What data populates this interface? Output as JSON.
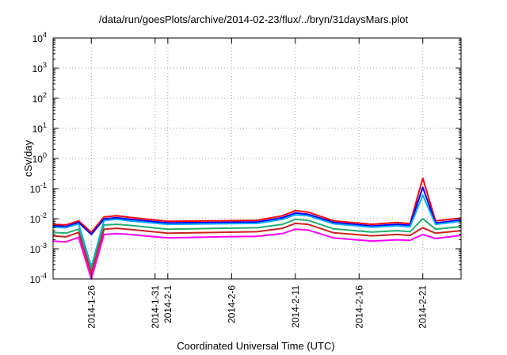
{
  "chart_data": {
    "type": "line",
    "title": "/data/run/goesPlots/archive/2014-02-23/flux/../bryn/31daysMars.plot",
    "xlabel": "Coordinated Universal Time (UTC)",
    "ylabel": "cSv/day",
    "y_scale": "log",
    "ylim": [
      0.0001,
      10000
    ],
    "xlim": [
      "2014-01-23",
      "2014-02-24"
    ],
    "grid": true,
    "y_ticks": [
      {
        "base": "10",
        "exp": "-4",
        "value": 0.0001
      },
      {
        "base": "10",
        "exp": "-3",
        "value": 0.001
      },
      {
        "base": "10",
        "exp": "-2",
        "value": 0.01
      },
      {
        "base": "10",
        "exp": "-1",
        "value": 0.1
      },
      {
        "base": "10",
        "exp": "0",
        "value": 1
      },
      {
        "base": "10",
        "exp": "1",
        "value": 10
      },
      {
        "base": "10",
        "exp": "2",
        "value": 100
      },
      {
        "base": "10",
        "exp": "3",
        "value": 1000
      },
      {
        "base": "10",
        "exp": "4",
        "value": 10000
      }
    ],
    "x_ticks": [
      {
        "label": "2014-1-26",
        "date": "2014-01-26"
      },
      {
        "label": "2014-1-31",
        "date": "2014-01-31"
      },
      {
        "label": "2014-2-1",
        "date": "2014-02-01"
      },
      {
        "label": "2014-2-6",
        "date": "2014-02-06"
      },
      {
        "label": "2014-2-11",
        "date": "2014-02-11"
      },
      {
        "label": "2014-2-16",
        "date": "2014-02-16"
      },
      {
        "label": "2014-2-21",
        "date": "2014-02-21"
      }
    ],
    "key_dates": [
      "2014-01-23",
      "2014-01-24",
      "2014-01-25",
      "2014-01-26",
      "2014-01-27",
      "2014-01-28",
      "2014-01-29",
      "2014-02-01",
      "2014-02-05",
      "2014-02-08",
      "2014-02-10",
      "2014-02-11",
      "2014-02-12",
      "2014-02-14",
      "2014-02-17",
      "2014-02-19",
      "2014-02-20",
      "2014-02-21",
      "2014-02-22",
      "2014-02-24"
    ],
    "series": [
      {
        "color": "#ff0000",
        "values": [
          0.0065,
          0.0062,
          0.0085,
          0.0035,
          0.0115,
          0.0125,
          0.011,
          0.0082,
          0.0085,
          0.0088,
          0.0125,
          0.0185,
          0.0165,
          0.0085,
          0.0065,
          0.0075,
          0.0068,
          0.22,
          0.0085,
          0.0105
        ]
      },
      {
        "color": "#0000ff",
        "values": [
          0.0058,
          0.0055,
          0.0075,
          0.003,
          0.0098,
          0.0108,
          0.0095,
          0.0072,
          0.0075,
          0.0077,
          0.0108,
          0.0155,
          0.014,
          0.0075,
          0.0057,
          0.0065,
          0.006,
          0.11,
          0.0072,
          0.009
        ]
      },
      {
        "color": "#00aaff",
        "values": [
          0.0052,
          0.005,
          0.0068,
          0.00025,
          0.0088,
          0.0095,
          0.0085,
          0.0065,
          0.0068,
          0.007,
          0.0095,
          0.0135,
          0.0125,
          0.0068,
          0.0052,
          0.0058,
          0.0054,
          0.06,
          0.0065,
          0.0082
        ]
      },
      {
        "color": "#20b070",
        "values": [
          0.0035,
          0.0033,
          0.0045,
          0.0002,
          0.0062,
          0.0065,
          0.006,
          0.0045,
          0.0048,
          0.005,
          0.0065,
          0.0095,
          0.0088,
          0.0046,
          0.0036,
          0.004,
          0.0037,
          0.01,
          0.0045,
          0.0055
        ]
      },
      {
        "color": "#cc2020",
        "values": [
          0.0027,
          0.0025,
          0.0035,
          0.00015,
          0.0045,
          0.0048,
          0.0044,
          0.0033,
          0.0035,
          0.0037,
          0.0048,
          0.007,
          0.0065,
          0.0034,
          0.0027,
          0.003,
          0.0028,
          0.005,
          0.0033,
          0.004
        ]
      },
      {
        "color": "#ff00ff",
        "values": [
          0.0018,
          0.0017,
          0.0024,
          0.0001,
          0.003,
          0.0032,
          0.003,
          0.0023,
          0.0025,
          0.0026,
          0.0032,
          0.0045,
          0.0042,
          0.0023,
          0.0018,
          0.002,
          0.0019,
          0.003,
          0.0022,
          0.0028
        ]
      }
    ]
  }
}
